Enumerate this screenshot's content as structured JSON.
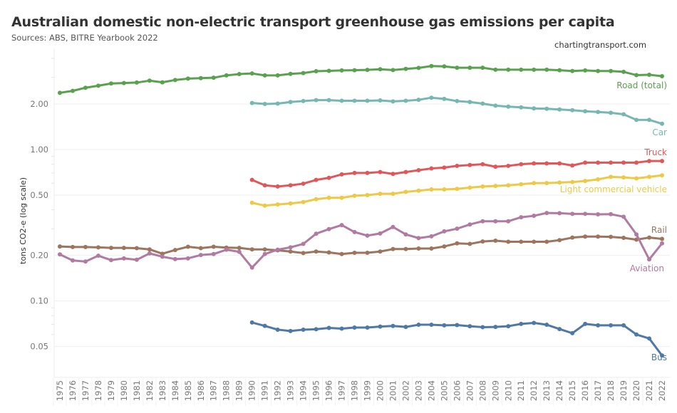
{
  "header": {
    "title": "Australian domestic non-electric transport greenhouse gas emissions per capita",
    "subtitle": "Sources: ABS, BITRE Yearbook 2022",
    "credit": "chartingtransport.com"
  },
  "chart_data": {
    "type": "line",
    "title": "Australian domestic non-electric transport greenhouse gas emissions per capita",
    "subtitle": "Sources: ABS, BITRE Yearbook 2022",
    "xlabel": "",
    "ylabel": "tons CO2-e (log scale)",
    "yscale": "log",
    "ylim": [
      0.04,
      4.0
    ],
    "yticks": [
      0.05,
      0.1,
      0.2,
      0.5,
      1.0,
      2.0
    ],
    "ytick_labels": [
      "0.05",
      "0.10",
      "0.20",
      "0.50",
      "1.00",
      "2.00"
    ],
    "x": [
      1975,
      1976,
      1977,
      1978,
      1979,
      1980,
      1981,
      1982,
      1983,
      1984,
      1985,
      1986,
      1987,
      1988,
      1989,
      1990,
      1991,
      1992,
      1993,
      1994,
      1995,
      1996,
      1997,
      1998,
      1999,
      2000,
      2001,
      2002,
      2003,
      2004,
      2005,
      2006,
      2007,
      2008,
      2009,
      2010,
      2011,
      2012,
      2013,
      2014,
      2015,
      2016,
      2017,
      2018,
      2019,
      2020,
      2021,
      2022
    ],
    "grid": "horizontal",
    "legend": "direct labels at right end of each line",
    "series": [
      {
        "name": "Road (total)",
        "color": "#59a14f",
        "start": 1975,
        "values": [
          2.37,
          2.44,
          2.56,
          2.64,
          2.73,
          2.75,
          2.77,
          2.85,
          2.78,
          2.88,
          2.94,
          2.96,
          2.98,
          3.09,
          3.15,
          3.18,
          3.09,
          3.09,
          3.16,
          3.2,
          3.29,
          3.31,
          3.33,
          3.34,
          3.36,
          3.39,
          3.35,
          3.41,
          3.46,
          3.56,
          3.54,
          3.47,
          3.47,
          3.47,
          3.37,
          3.37,
          3.37,
          3.37,
          3.37,
          3.34,
          3.3,
          3.33,
          3.3,
          3.3,
          3.26,
          3.1,
          3.12,
          3.05
        ]
      },
      {
        "name": "Car",
        "color": "#76b7b2",
        "start": 1990,
        "values": [
          2.03,
          2.0,
          2.01,
          2.06,
          2.09,
          2.12,
          2.12,
          2.1,
          2.1,
          2.1,
          2.11,
          2.08,
          2.1,
          2.13,
          2.2,
          2.16,
          2.09,
          2.06,
          2.01,
          1.95,
          1.92,
          1.9,
          1.87,
          1.86,
          1.84,
          1.82,
          1.79,
          1.77,
          1.75,
          1.71,
          1.57,
          1.57,
          1.48
        ]
      },
      {
        "name": "Truck",
        "color": "#e15759",
        "start": 1990,
        "values": [
          0.63,
          0.58,
          0.57,
          0.58,
          0.595,
          0.63,
          0.65,
          0.685,
          0.7,
          0.7,
          0.71,
          0.69,
          0.71,
          0.73,
          0.75,
          0.76,
          0.78,
          0.79,
          0.8,
          0.77,
          0.78,
          0.8,
          0.81,
          0.81,
          0.81,
          0.785,
          0.82,
          0.82,
          0.82,
          0.82,
          0.82,
          0.84,
          0.84
        ]
      },
      {
        "name": "Light commercial vehicle",
        "color": "#edc948",
        "start": 1990,
        "values": [
          0.445,
          0.426,
          0.434,
          0.44,
          0.45,
          0.47,
          0.48,
          0.48,
          0.495,
          0.5,
          0.51,
          0.51,
          0.525,
          0.535,
          0.545,
          0.545,
          0.55,
          0.56,
          0.57,
          0.575,
          0.58,
          0.59,
          0.6,
          0.6,
          0.605,
          0.61,
          0.62,
          0.635,
          0.66,
          0.655,
          0.645,
          0.66,
          0.675
        ]
      },
      {
        "name": "Rail",
        "color": "#9c755f",
        "start": 1975,
        "values": [
          0.229,
          0.227,
          0.227,
          0.226,
          0.224,
          0.224,
          0.223,
          0.219,
          0.205,
          0.217,
          0.228,
          0.223,
          0.228,
          0.225,
          0.224,
          0.219,
          0.219,
          0.216,
          0.212,
          0.207,
          0.212,
          0.209,
          0.204,
          0.208,
          0.208,
          0.212,
          0.22,
          0.22,
          0.222,
          0.222,
          0.229,
          0.24,
          0.238,
          0.247,
          0.25,
          0.246,
          0.246,
          0.246,
          0.246,
          0.252,
          0.262,
          0.266,
          0.266,
          0.265,
          0.261,
          0.254,
          0.262,
          0.257
        ]
      },
      {
        "name": "Aviation",
        "color": "#b07aa1",
        "start": 1975,
        "values": [
          0.203,
          0.185,
          0.182,
          0.199,
          0.186,
          0.191,
          0.187,
          0.206,
          0.196,
          0.189,
          0.191,
          0.201,
          0.204,
          0.218,
          0.211,
          0.166,
          0.204,
          0.218,
          0.226,
          0.238,
          0.278,
          0.298,
          0.317,
          0.285,
          0.27,
          0.279,
          0.308,
          0.275,
          0.26,
          0.267,
          0.288,
          0.3,
          0.32,
          0.336,
          0.336,
          0.336,
          0.357,
          0.365,
          0.381,
          0.38,
          0.376,
          0.376,
          0.373,
          0.374,
          0.36,
          0.275,
          0.188,
          0.24
        ]
      },
      {
        "name": "Bus",
        "color": "#4e79a7",
        "start": 1990,
        "values": [
          0.072,
          0.0684,
          0.0646,
          0.0633,
          0.0646,
          0.065,
          0.0663,
          0.0656,
          0.0667,
          0.0667,
          0.0677,
          0.0683,
          0.0673,
          0.0696,
          0.0696,
          0.069,
          0.0693,
          0.0681,
          0.0671,
          0.0673,
          0.0681,
          0.0705,
          0.0716,
          0.0696,
          0.0652,
          0.0612,
          0.0705,
          0.069,
          0.069,
          0.069,
          0.06,
          0.0565,
          0.0436
        ]
      }
    ]
  }
}
